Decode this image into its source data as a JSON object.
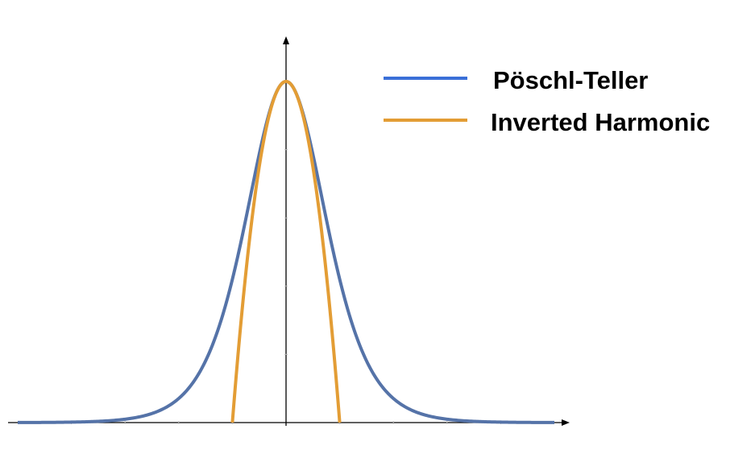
{
  "chart_data": {
    "type": "line",
    "title": "",
    "xlabel": "",
    "ylabel": "",
    "xlim": [
      -5,
      5
    ],
    "ylim": [
      0,
      1
    ],
    "grid": false,
    "legend_position": "top-right",
    "series": [
      {
        "name": "Pöschl-Teller",
        "color": "#5573a8",
        "legend_color": "#3a6fd8",
        "x": [
          -5,
          -4.5,
          -4,
          -3.5,
          -3,
          -2.5,
          -2,
          -1.75,
          -1.5,
          -1.25,
          -1,
          -0.75,
          -0.5,
          -0.25,
          0,
          0.25,
          0.5,
          0.75,
          1,
          1.25,
          1.5,
          1.75,
          2,
          2.5,
          3,
          3.5,
          4,
          4.5,
          5
        ],
        "y": [
          0.0002,
          0.0005,
          0.0013,
          0.0036,
          0.0099,
          0.0266,
          0.0707,
          0.1132,
          0.1807,
          0.2829,
          0.42,
          0.582,
          0.7864,
          0.9405,
          1.0,
          0.9405,
          0.7864,
          0.582,
          0.42,
          0.2829,
          0.1807,
          0.1132,
          0.0707,
          0.0266,
          0.0099,
          0.0036,
          0.0013,
          0.0005,
          0.0002
        ]
      },
      {
        "name": "Inverted Harmonic",
        "color": "#e39d35",
        "legend_color": "#e39d35",
        "x": [
          -1.0,
          -0.75,
          -0.5,
          -0.25,
          0,
          0.25,
          0.5,
          0.75,
          1.0
        ],
        "y": [
          0,
          0.4375,
          0.75,
          0.9375,
          1.0,
          0.9375,
          0.75,
          0.4375,
          0
        ]
      }
    ]
  }
}
